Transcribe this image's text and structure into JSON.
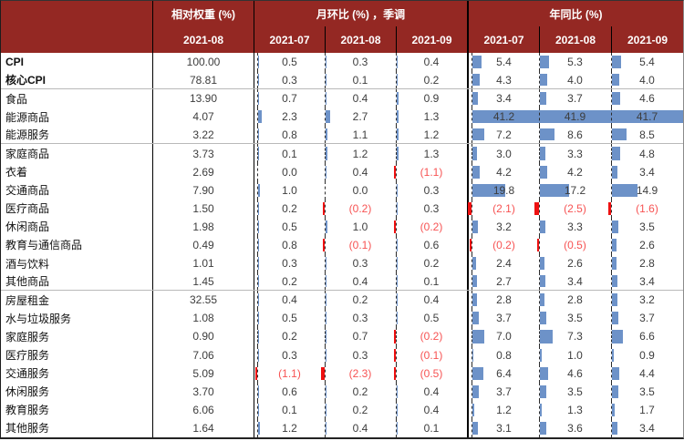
{
  "header": {
    "weight_group": "相对权重 (%)",
    "weight_date": "2021-08",
    "mom_group": "月环比 (%) ，季调",
    "mom_dates": [
      "2021-07",
      "2021-08",
      "2021-09"
    ],
    "yoy_group": "年同比 (%)",
    "yoy_dates": [
      "2021-07",
      "2021-08",
      "2021-09"
    ]
  },
  "colors": {
    "header_bg": "#942823",
    "header_text": "#ffffff",
    "positive_bar": "#6d92c8",
    "negative_bar": "#ee1111",
    "negative_text": "#f75353",
    "value_text": "#3d3d3d"
  },
  "chart_data": {
    "type": "table",
    "title": "",
    "column_groups": [
      "相对权重 (%)",
      "月环比 (%) ，季调",
      "年同比 (%)"
    ],
    "columns": [
      "相对权重 2021-08",
      "月环比 2021-07",
      "月环比 2021-08",
      "月环比 2021-09",
      "年同比 2021-07",
      "年同比 2021-08",
      "年同比 2021-09"
    ],
    "bar_scale_max": 42,
    "section_breaks": [
      1,
      4,
      12
    ],
    "rows": [
      {
        "label": "CPI",
        "bold": true,
        "weight": 100.0,
        "mom": [
          0.5,
          0.3,
          0.4
        ],
        "yoy": [
          5.4,
          5.3,
          5.4
        ]
      },
      {
        "label": "核心CPI",
        "bold": true,
        "weight": 78.81,
        "mom": [
          0.3,
          0.1,
          0.2
        ],
        "yoy": [
          4.3,
          4.0,
          4.0
        ]
      },
      {
        "label": "食品",
        "bold": false,
        "weight": 13.9,
        "mom": [
          0.7,
          0.4,
          0.9
        ],
        "yoy": [
          3.4,
          3.7,
          4.6
        ]
      },
      {
        "label": "能源商品",
        "bold": false,
        "weight": 4.07,
        "mom": [
          2.3,
          2.7,
          1.3
        ],
        "yoy": [
          41.2,
          41.9,
          41.7
        ]
      },
      {
        "label": "能源服务",
        "bold": false,
        "weight": 3.22,
        "mom": [
          0.8,
          1.1,
          1.2
        ],
        "yoy": [
          7.2,
          8.6,
          8.5
        ]
      },
      {
        "label": "家庭商品",
        "bold": false,
        "weight": 3.73,
        "mom": [
          0.1,
          1.2,
          1.3
        ],
        "yoy": [
          3.0,
          3.3,
          4.8
        ]
      },
      {
        "label": "衣着",
        "bold": false,
        "weight": 2.69,
        "mom": [
          0.0,
          0.4,
          -1.1
        ],
        "yoy": [
          4.2,
          4.2,
          3.4
        ]
      },
      {
        "label": "交通商品",
        "bold": false,
        "weight": 7.9,
        "mom": [
          1.0,
          0.0,
          0.3
        ],
        "yoy": [
          19.8,
          17.2,
          14.9
        ]
      },
      {
        "label": "医疗商品",
        "bold": false,
        "weight": 1.5,
        "mom": [
          0.2,
          -0.2,
          0.3
        ],
        "yoy": [
          -2.1,
          -2.5,
          -1.6
        ]
      },
      {
        "label": "休闲商品",
        "bold": false,
        "weight": 1.98,
        "mom": [
          0.5,
          1.0,
          -0.2
        ],
        "yoy": [
          3.2,
          3.3,
          3.5
        ]
      },
      {
        "label": "教育与通信商品",
        "bold": false,
        "weight": 0.49,
        "mom": [
          0.8,
          -0.1,
          0.6
        ],
        "yoy": [
          -0.2,
          -0.5,
          2.6
        ]
      },
      {
        "label": "酒与饮料",
        "bold": false,
        "weight": 1.01,
        "mom": [
          0.3,
          0.3,
          0.2
        ],
        "yoy": [
          2.4,
          2.6,
          2.8
        ]
      },
      {
        "label": "其他商品",
        "bold": false,
        "weight": 1.45,
        "mom": [
          0.2,
          0.4,
          0.1
        ],
        "yoy": [
          2.7,
          3.4,
          3.4
        ]
      },
      {
        "label": "房屋租金",
        "bold": false,
        "weight": 32.55,
        "mom": [
          0.4,
          0.2,
          0.4
        ],
        "yoy": [
          2.8,
          2.8,
          3.2
        ]
      },
      {
        "label": "水与垃圾服务",
        "bold": false,
        "weight": 1.08,
        "mom": [
          0.5,
          0.3,
          0.5
        ],
        "yoy": [
          3.7,
          3.5,
          3.7
        ]
      },
      {
        "label": "家庭服务",
        "bold": false,
        "weight": 0.9,
        "mom": [
          0.2,
          0.7,
          -0.2
        ],
        "yoy": [
          7.0,
          7.3,
          6.6
        ]
      },
      {
        "label": "医疗服务",
        "bold": false,
        "weight": 7.06,
        "mom": [
          0.3,
          0.3,
          -0.1
        ],
        "yoy": [
          0.8,
          1.0,
          0.9
        ]
      },
      {
        "label": "交通服务",
        "bold": false,
        "weight": 5.09,
        "mom": [
          -1.1,
          -2.3,
          -0.5
        ],
        "yoy": [
          6.4,
          4.6,
          4.4
        ]
      },
      {
        "label": "休闲服务",
        "bold": false,
        "weight": 3.7,
        "mom": [
          0.6,
          0.2,
          0.4
        ],
        "yoy": [
          3.7,
          3.5,
          3.5
        ]
      },
      {
        "label": "教育服务",
        "bold": false,
        "weight": 6.06,
        "mom": [
          0.1,
          0.2,
          0.4
        ],
        "yoy": [
          1.2,
          1.3,
          1.7
        ]
      },
      {
        "label": "其他服务",
        "bold": false,
        "weight": 1.64,
        "mom": [
          1.2,
          0.4,
          0.1
        ],
        "yoy": [
          3.1,
          3.6,
          3.4
        ]
      }
    ]
  }
}
